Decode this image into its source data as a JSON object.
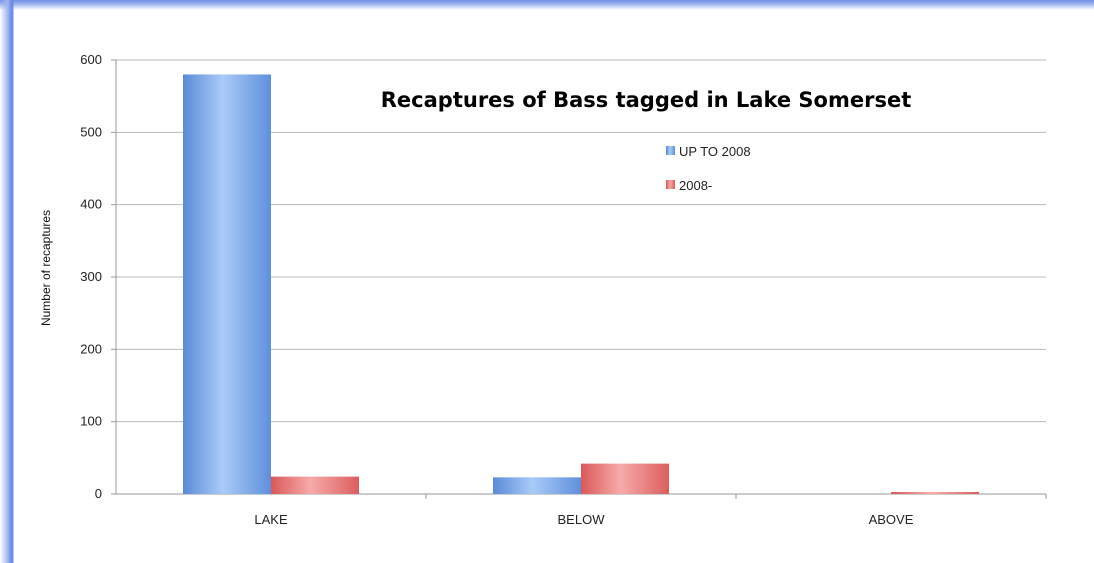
{
  "chart_data": {
    "type": "bar",
    "title": "Recaptures of Bass tagged in Lake Somerset",
    "xlabel": "",
    "ylabel": "Number of recaptures",
    "categories": [
      "LAKE",
      "BELOW",
      "ABOVE"
    ],
    "series": [
      {
        "name": "UP TO 2008",
        "values": [
          580,
          23,
          0
        ],
        "color": "#6f9ee6"
      },
      {
        "name": "2008-",
        "values": [
          24,
          42,
          1
        ],
        "color": "#e46a6a"
      }
    ],
    "ylim": [
      0,
      600
    ],
    "yticks": [
      0,
      100,
      200,
      300,
      400,
      500,
      600
    ],
    "grid": true,
    "legend_position": "inside-top-right"
  }
}
